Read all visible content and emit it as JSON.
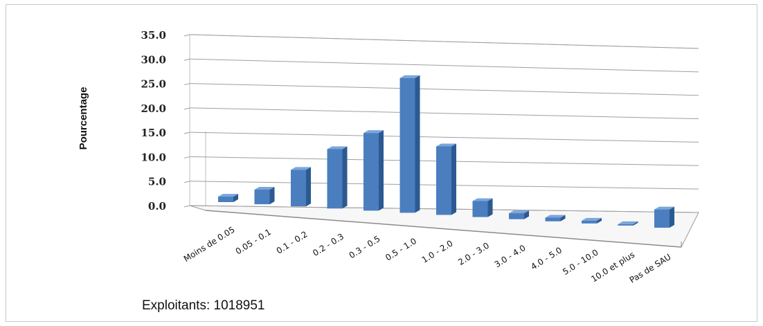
{
  "chart_data": {
    "type": "bar",
    "title": "",
    "xlabel": "",
    "ylabel": "Pourcentage",
    "ylim": [
      0,
      35
    ],
    "yticks": [
      "0.0",
      "5.0",
      "10.0",
      "15.0",
      "20.0",
      "25.0",
      "30.0",
      "35.0"
    ],
    "grid": true,
    "bar_color": "#4a7ebf",
    "categories": [
      "Moins de 0.05",
      "0.05 - 0.1",
      "0.1 - 0.2",
      "0.2 - 0.3",
      "0.3 - 0.5",
      "0.5 - 1.0",
      "1.0 - 2.0",
      "2.0 - 3.0",
      "3.0 - 4.0",
      "4.0 - 5.0",
      "5.0 - 10.0",
      "10.0 et plus",
      "Pas de SAU"
    ],
    "values": [
      1.2,
      3.2,
      8.0,
      13.0,
      17.0,
      29.5,
      15.0,
      3.5,
      1.3,
      0.8,
      0.6,
      0.3,
      4.0
    ],
    "annotation": "Exploitants: 1018951"
  }
}
